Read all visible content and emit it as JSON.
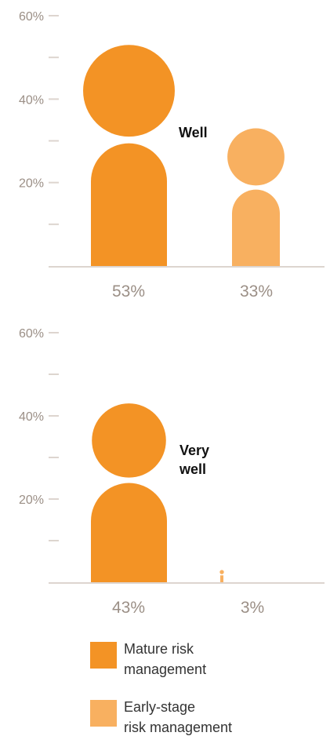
{
  "chart_data": [
    {
      "type": "bar",
      "title": "Well",
      "categories": [
        "Mature risk management",
        "Early-stage risk management"
      ],
      "values": [
        53,
        33
      ],
      "value_labels": [
        "53%",
        "33%"
      ],
      "ylim": [
        0,
        60
      ],
      "yticks": [
        0,
        10,
        20,
        30,
        40,
        50,
        60
      ],
      "ytick_labels": [
        "",
        "",
        "20%",
        "",
        "40%",
        "",
        "60%"
      ],
      "colors": [
        "#f39325",
        "#f8b060"
      ],
      "grid": false
    },
    {
      "type": "bar",
      "title": "Very well",
      "categories": [
        "Mature risk management",
        "Early-stage risk management"
      ],
      "values": [
        43,
        3
      ],
      "value_labels": [
        "43%",
        "3%"
      ],
      "ylim": [
        0,
        60
      ],
      "yticks": [
        0,
        10,
        20,
        30,
        40,
        50,
        60
      ],
      "ytick_labels": [
        "",
        "",
        "20%",
        "",
        "40%",
        "",
        "60%"
      ],
      "colors": [
        "#f39325",
        "#f8b060"
      ],
      "grid": false
    }
  ],
  "legend": {
    "items": [
      {
        "line1": "Mature risk",
        "line2": "management",
        "color": "#f39325"
      },
      {
        "line1": "Early-stage",
        "line2": "risk management",
        "color": "#f8b060"
      }
    ]
  }
}
